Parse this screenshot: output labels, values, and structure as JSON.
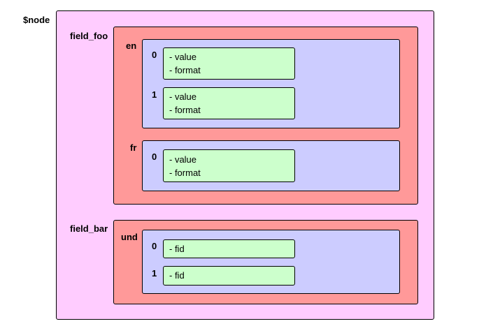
{
  "colors": {
    "node_fill": "#ffccff",
    "field_fill": "#ff9999",
    "language_fill": "#ccccff",
    "delta_fill": "#ccffcc",
    "border": "#000000"
  },
  "node": {
    "label": "$node",
    "fields": [
      {
        "label": "field_foo",
        "languages": [
          {
            "label": "en",
            "deltas": [
              {
                "label": "0",
                "items": [
                  "- value",
                  "- format"
                ]
              },
              {
                "label": "1",
                "items": [
                  "- value",
                  "- format"
                ]
              }
            ]
          },
          {
            "label": "fr",
            "deltas": [
              {
                "label": "0",
                "items": [
                  "- value",
                  "- format"
                ]
              }
            ]
          }
        ]
      },
      {
        "label": "field_bar",
        "languages": [
          {
            "label": "und",
            "deltas": [
              {
                "label": "0",
                "items": [
                  "- fid"
                ]
              },
              {
                "label": "1",
                "items": [
                  "- fid"
                ]
              }
            ]
          }
        ]
      }
    ]
  }
}
